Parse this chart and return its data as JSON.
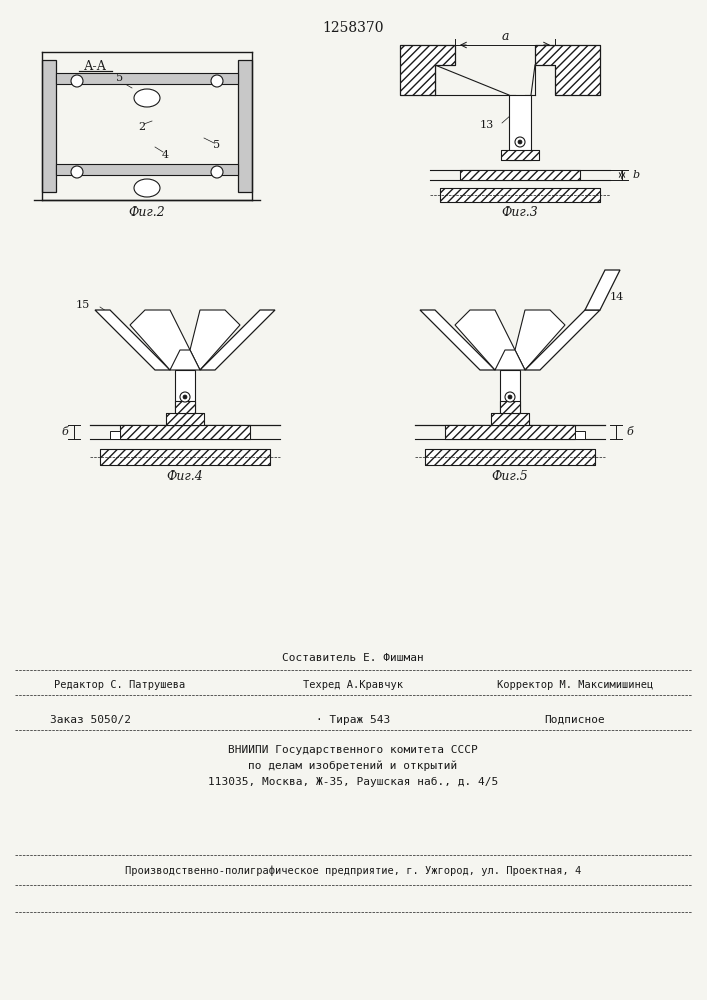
{
  "title": "1258370",
  "bg_color": "#f5f5f0",
  "line_color": "#1a1a1a",
  "fig2_caption": "Фиг.2",
  "fig3_caption": "Фиг.3",
  "fig4_caption": "Фиг.4",
  "fig5_caption": "Фиг.5",
  "label_aa": "А-А",
  "label_a": "a",
  "label_b": "b",
  "label_b2": "б",
  "label_2": "2",
  "label_4": "4",
  "label_5": "5",
  "label_13": "13",
  "label_14": "14",
  "label_15": "15",
  "footer_row0": "Составитель Е. Фишман",
  "footer_row1_l": "Редактор С. Патрушева",
  "footer_row1_m": "Техред А.Кравчук",
  "footer_row1_r": "Корректор М. Максимишинец",
  "footer_row2_l": "Заказ 5050/2",
  "footer_row2_m": "· Тираж 543",
  "footer_row2_r": "Подписное",
  "footer_vnipi1": "ВНИИПИ Государственного комитета СССР",
  "footer_vnipi2": "по делам изобретений и открытий",
  "footer_vnipi3": "113035, Москва, Ж-35, Раушская наб., д. 4/5",
  "footer_last": "Производственно-полиграфическое предприятие, г. Ужгород, ул. Проектная, 4"
}
